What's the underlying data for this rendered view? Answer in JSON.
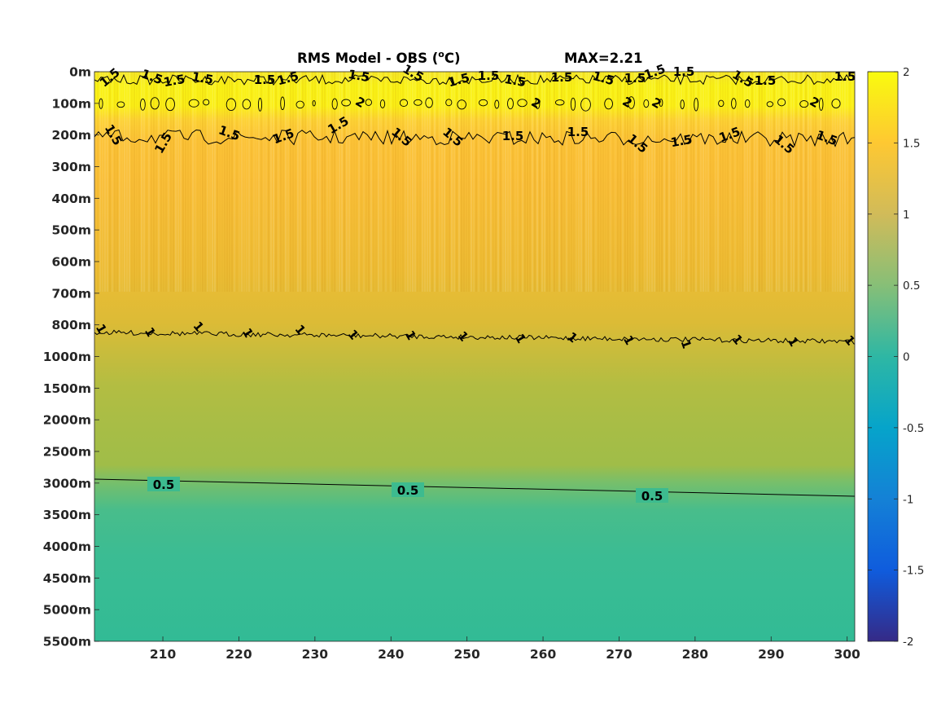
{
  "chart_data": {
    "type": "heatmap",
    "title": "RMS Model - OBS (",
    "title_sup": "o",
    "title_unit": "C)",
    "max_label": "MAX=2.21",
    "x_ticks": [
      {
        "value": 210,
        "label": "210"
      },
      {
        "value": 220,
        "label": "220"
      },
      {
        "value": 230,
        "label": "230"
      },
      {
        "value": 240,
        "label": "240"
      },
      {
        "value": 250,
        "label": "250"
      },
      {
        "value": 260,
        "label": "260"
      },
      {
        "value": 270,
        "label": "270"
      },
      {
        "value": 280,
        "label": "280"
      },
      {
        "value": 290,
        "label": "290"
      },
      {
        "value": 300,
        "label": "300"
      }
    ],
    "x_range": [
      201,
      301
    ],
    "y_ticks": [
      "0m",
      "100m",
      "200m",
      "300m",
      "400m",
      "500m",
      "600m",
      "700m",
      "800m",
      "1000m",
      "1500m",
      "2000m",
      "2500m",
      "3000m",
      "3500m",
      "4000m",
      "4500m",
      "5000m",
      "5500m"
    ],
    "colorbar": {
      "range": [
        -2,
        2
      ],
      "ticks": [
        "2",
        "1.5",
        "1",
        "0.5",
        "0",
        "-0.5",
        "-1",
        "-1.5",
        "-2"
      ],
      "colormap": "parula",
      "colors": [
        "#352a87",
        "#0f5cdd",
        "#1481d6",
        "#06a4ca",
        "#2eb7a4",
        "#87bf77",
        "#d1bb59",
        "#fec832",
        "#f9fb0e"
      ]
    },
    "depth_profile": [
      {
        "depth": "0m",
        "value": 1.85
      },
      {
        "depth": "100m",
        "value": 2.05
      },
      {
        "depth": "200m",
        "value": 1.55
      },
      {
        "depth": "300m",
        "value": 1.42
      },
      {
        "depth": "400m",
        "value": 1.38
      },
      {
        "depth": "500m",
        "value": 1.34
      },
      {
        "depth": "600m",
        "value": 1.3
      },
      {
        "depth": "700m",
        "value": 1.25
      },
      {
        "depth": "800m",
        "value": 1.1
      },
      {
        "depth": "1000m",
        "value": 0.95
      },
      {
        "depth": "1500m",
        "value": 0.85
      },
      {
        "depth": "2000m",
        "value": 0.82
      },
      {
        "depth": "2500m",
        "value": 0.78
      },
      {
        "depth": "3000m",
        "value": 0.5
      },
      {
        "depth": "3500m",
        "value": 0.42
      },
      {
        "depth": "4000m",
        "value": 0.4
      },
      {
        "depth": "4500m",
        "value": 0.39
      },
      {
        "depth": "5000m",
        "value": 0.38
      },
      {
        "depth": "5500m",
        "value": 0.38
      }
    ],
    "contours": [
      {
        "level": "1.5",
        "depth": "~50m",
        "labels": "many"
      },
      {
        "level": "2",
        "depth": "100m",
        "labels": "many"
      },
      {
        "level": "1.5",
        "depth": "200m",
        "labels": "many"
      },
      {
        "level": "1",
        "depth": "~850m",
        "labels": "many"
      },
      {
        "level": "0.5",
        "depth": "~3000m",
        "labels": "three"
      }
    ],
    "contour_label_text": {
      "c05": "0.5",
      "c1": "1",
      "c15": "1.5",
      "c2": "2"
    },
    "grid": false
  }
}
